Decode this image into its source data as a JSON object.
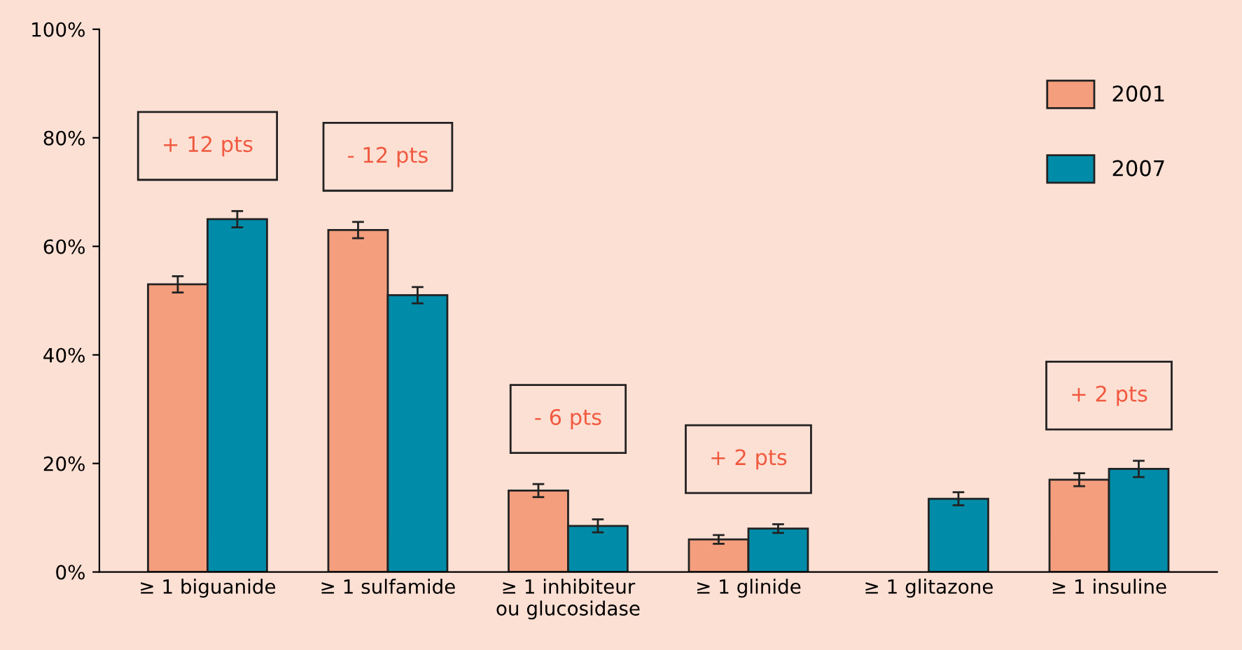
{
  "chart_data": {
    "type": "bar",
    "categories": [
      "≥ 1 biguanide",
      "≥ 1 sulfamide",
      "≥ 1 inhibiteur\nou glucosidase",
      "≥ 1 glinide",
      "≥ 1 glitazone",
      "≥ 1 insuline"
    ],
    "series": [
      {
        "name": "2001",
        "color": "#f49e7e",
        "values": [
          53,
          63,
          15,
          6,
          null,
          17
        ],
        "errors": [
          1.5,
          1.5,
          1.2,
          0.8,
          null,
          1.2
        ]
      },
      {
        "name": "2007",
        "color": "#008ca8",
        "values": [
          65,
          51,
          8.5,
          8,
          13.5,
          19
        ],
        "errors": [
          1.5,
          1.5,
          1.2,
          0.8,
          1.2,
          1.5
        ]
      }
    ],
    "ylim": [
      0,
      100
    ],
    "yticks": [
      {
        "value": 0,
        "label": "0%"
      },
      {
        "value": 20,
        "label": "20%"
      },
      {
        "value": 40,
        "label": "40%"
      },
      {
        "value": 60,
        "label": "60%"
      },
      {
        "value": 80,
        "label": "80%"
      },
      {
        "value": 100,
        "label": "100%"
      }
    ],
    "annotations": [
      "+ 12 pts",
      "- 12 pts",
      "- 6 pts",
      "+ 2 pts",
      "+ 2 pts"
    ],
    "grid": false,
    "legend": "top right"
  }
}
